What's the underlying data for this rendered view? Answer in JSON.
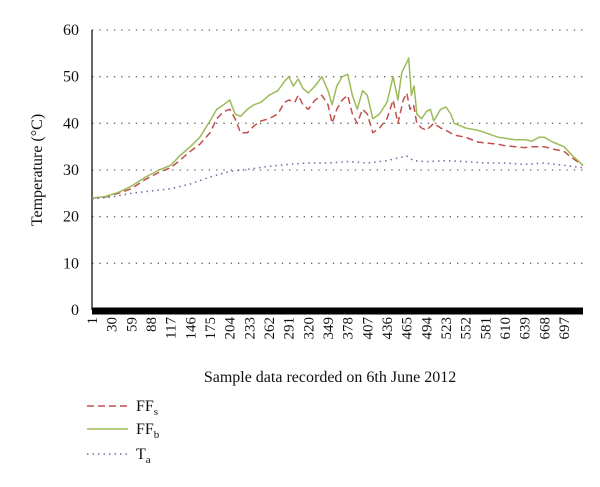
{
  "chart_data": {
    "type": "line",
    "title": "",
    "xlabel": "Sample data recorded on 6th June 2012",
    "ylabel": "Temperature (°C)",
    "ylim": [
      0,
      60
    ],
    "yticks": [
      "0",
      "10",
      "20",
      "30",
      "40",
      "50",
      "60"
    ],
    "xlim": [
      1,
      725
    ],
    "xticks": [
      "1",
      "30",
      "59",
      "88",
      "117",
      "146",
      "175",
      "204",
      "233",
      "262",
      "291",
      "320",
      "349",
      "378",
      "407",
      "436",
      "465",
      "494",
      "523",
      "552",
      "581",
      "610",
      "639",
      "668",
      "697"
    ],
    "grid": "horizontal dotted",
    "legend_position": "bottom-left",
    "series": [
      {
        "name": "FFs",
        "label_main": "FF",
        "label_sub": "s",
        "color": "#c0504d",
        "dash": "dashed",
        "points": [
          [
            1,
            24
          ],
          [
            20,
            24.2
          ],
          [
            40,
            25
          ],
          [
            59,
            26
          ],
          [
            80,
            28
          ],
          [
            100,
            29.5
          ],
          [
            117,
            30.5
          ],
          [
            130,
            32
          ],
          [
            146,
            34
          ],
          [
            160,
            35.5
          ],
          [
            175,
            38
          ],
          [
            185,
            41
          ],
          [
            195,
            42.5
          ],
          [
            204,
            43
          ],
          [
            212,
            41
          ],
          [
            220,
            38
          ],
          [
            230,
            38
          ],
          [
            240,
            39.5
          ],
          [
            250,
            40.5
          ],
          [
            262,
            41
          ],
          [
            275,
            42
          ],
          [
            285,
            44.5
          ],
          [
            291,
            45
          ],
          [
            300,
            44.5
          ],
          [
            305,
            46
          ],
          [
            312,
            44
          ],
          [
            320,
            43
          ],
          [
            330,
            45
          ],
          [
            340,
            46
          ],
          [
            349,
            44
          ],
          [
            355,
            40
          ],
          [
            362,
            43
          ],
          [
            370,
            45
          ],
          [
            378,
            46
          ],
          [
            385,
            42
          ],
          [
            392,
            40
          ],
          [
            400,
            43
          ],
          [
            407,
            42
          ],
          [
            415,
            38
          ],
          [
            425,
            39
          ],
          [
            436,
            41
          ],
          [
            445,
            45
          ],
          [
            452,
            40
          ],
          [
            460,
            45
          ],
          [
            465,
            46.5
          ],
          [
            470,
            43
          ],
          [
            475,
            44
          ],
          [
            480,
            40
          ],
          [
            487,
            39
          ],
          [
            494,
            38.5
          ],
          [
            505,
            40
          ],
          [
            515,
            39
          ],
          [
            523,
            38.5
          ],
          [
            535,
            37.5
          ],
          [
            552,
            37
          ],
          [
            570,
            36
          ],
          [
            581,
            35.8
          ],
          [
            600,
            35.5
          ],
          [
            610,
            35.2
          ],
          [
            625,
            35
          ],
          [
            639,
            34.8
          ],
          [
            650,
            35
          ],
          [
            668,
            35
          ],
          [
            680,
            34.5
          ],
          [
            697,
            34
          ],
          [
            705,
            33
          ],
          [
            715,
            32
          ],
          [
            725,
            31
          ]
        ]
      },
      {
        "name": "FFb",
        "label_main": "FF",
        "label_sub": "b",
        "color": "#9bbb59",
        "dash": "solid",
        "points": [
          [
            1,
            24
          ],
          [
            20,
            24.3
          ],
          [
            40,
            25.2
          ],
          [
            59,
            26.5
          ],
          [
            80,
            28.5
          ],
          [
            100,
            30
          ],
          [
            117,
            31
          ],
          [
            130,
            33
          ],
          [
            146,
            35
          ],
          [
            160,
            37
          ],
          [
            175,
            40.5
          ],
          [
            185,
            43
          ],
          [
            195,
            44
          ],
          [
            204,
            45
          ],
          [
            212,
            42
          ],
          [
            220,
            41.5
          ],
          [
            230,
            43
          ],
          [
            240,
            44
          ],
          [
            250,
            44.5
          ],
          [
            262,
            46
          ],
          [
            275,
            47
          ],
          [
            285,
            49
          ],
          [
            291,
            50
          ],
          [
            298,
            48
          ],
          [
            305,
            49.5
          ],
          [
            312,
            47.5
          ],
          [
            320,
            46.5
          ],
          [
            330,
            48
          ],
          [
            340,
            50
          ],
          [
            349,
            47
          ],
          [
            355,
            44
          ],
          [
            362,
            48
          ],
          [
            370,
            50
          ],
          [
            378,
            50.5
          ],
          [
            385,
            46
          ],
          [
            392,
            43
          ],
          [
            400,
            47
          ],
          [
            407,
            46
          ],
          [
            415,
            41
          ],
          [
            425,
            42
          ],
          [
            436,
            44.5
          ],
          [
            445,
            50
          ],
          [
            452,
            45
          ],
          [
            458,
            51
          ],
          [
            465,
            53
          ],
          [
            468,
            54
          ],
          [
            472,
            46
          ],
          [
            476,
            48
          ],
          [
            480,
            42
          ],
          [
            487,
            41
          ],
          [
            494,
            42.5
          ],
          [
            500,
            43
          ],
          [
            505,
            40.5
          ],
          [
            515,
            43
          ],
          [
            523,
            43.5
          ],
          [
            530,
            42
          ],
          [
            535,
            40
          ],
          [
            552,
            39
          ],
          [
            570,
            38.5
          ],
          [
            581,
            38
          ],
          [
            600,
            37
          ],
          [
            610,
            36.8
          ],
          [
            625,
            36.5
          ],
          [
            639,
            36.5
          ],
          [
            650,
            36.2
          ],
          [
            660,
            37
          ],
          [
            668,
            37
          ],
          [
            680,
            36
          ],
          [
            697,
            35
          ],
          [
            710,
            33
          ],
          [
            725,
            31
          ]
        ]
      },
      {
        "name": "Ta",
        "label_main": "T",
        "label_sub": "a",
        "color": "#8064a2",
        "dash": "dotted",
        "points": [
          [
            1,
            23.8
          ],
          [
            30,
            24.2
          ],
          [
            59,
            25
          ],
          [
            88,
            25.5
          ],
          [
            117,
            26
          ],
          [
            146,
            27
          ],
          [
            175,
            28.5
          ],
          [
            204,
            29.7
          ],
          [
            233,
            30.2
          ],
          [
            262,
            30.8
          ],
          [
            291,
            31.2
          ],
          [
            320,
            31.5
          ],
          [
            349,
            31.5
          ],
          [
            378,
            31.8
          ],
          [
            407,
            31.5
          ],
          [
            436,
            32
          ],
          [
            450,
            32.5
          ],
          [
            465,
            33
          ],
          [
            475,
            32
          ],
          [
            494,
            31.8
          ],
          [
            523,
            32
          ],
          [
            552,
            31.8
          ],
          [
            581,
            31.5
          ],
          [
            610,
            31.5
          ],
          [
            639,
            31.2
          ],
          [
            668,
            31.5
          ],
          [
            697,
            31
          ],
          [
            725,
            30.5
          ]
        ]
      }
    ]
  }
}
